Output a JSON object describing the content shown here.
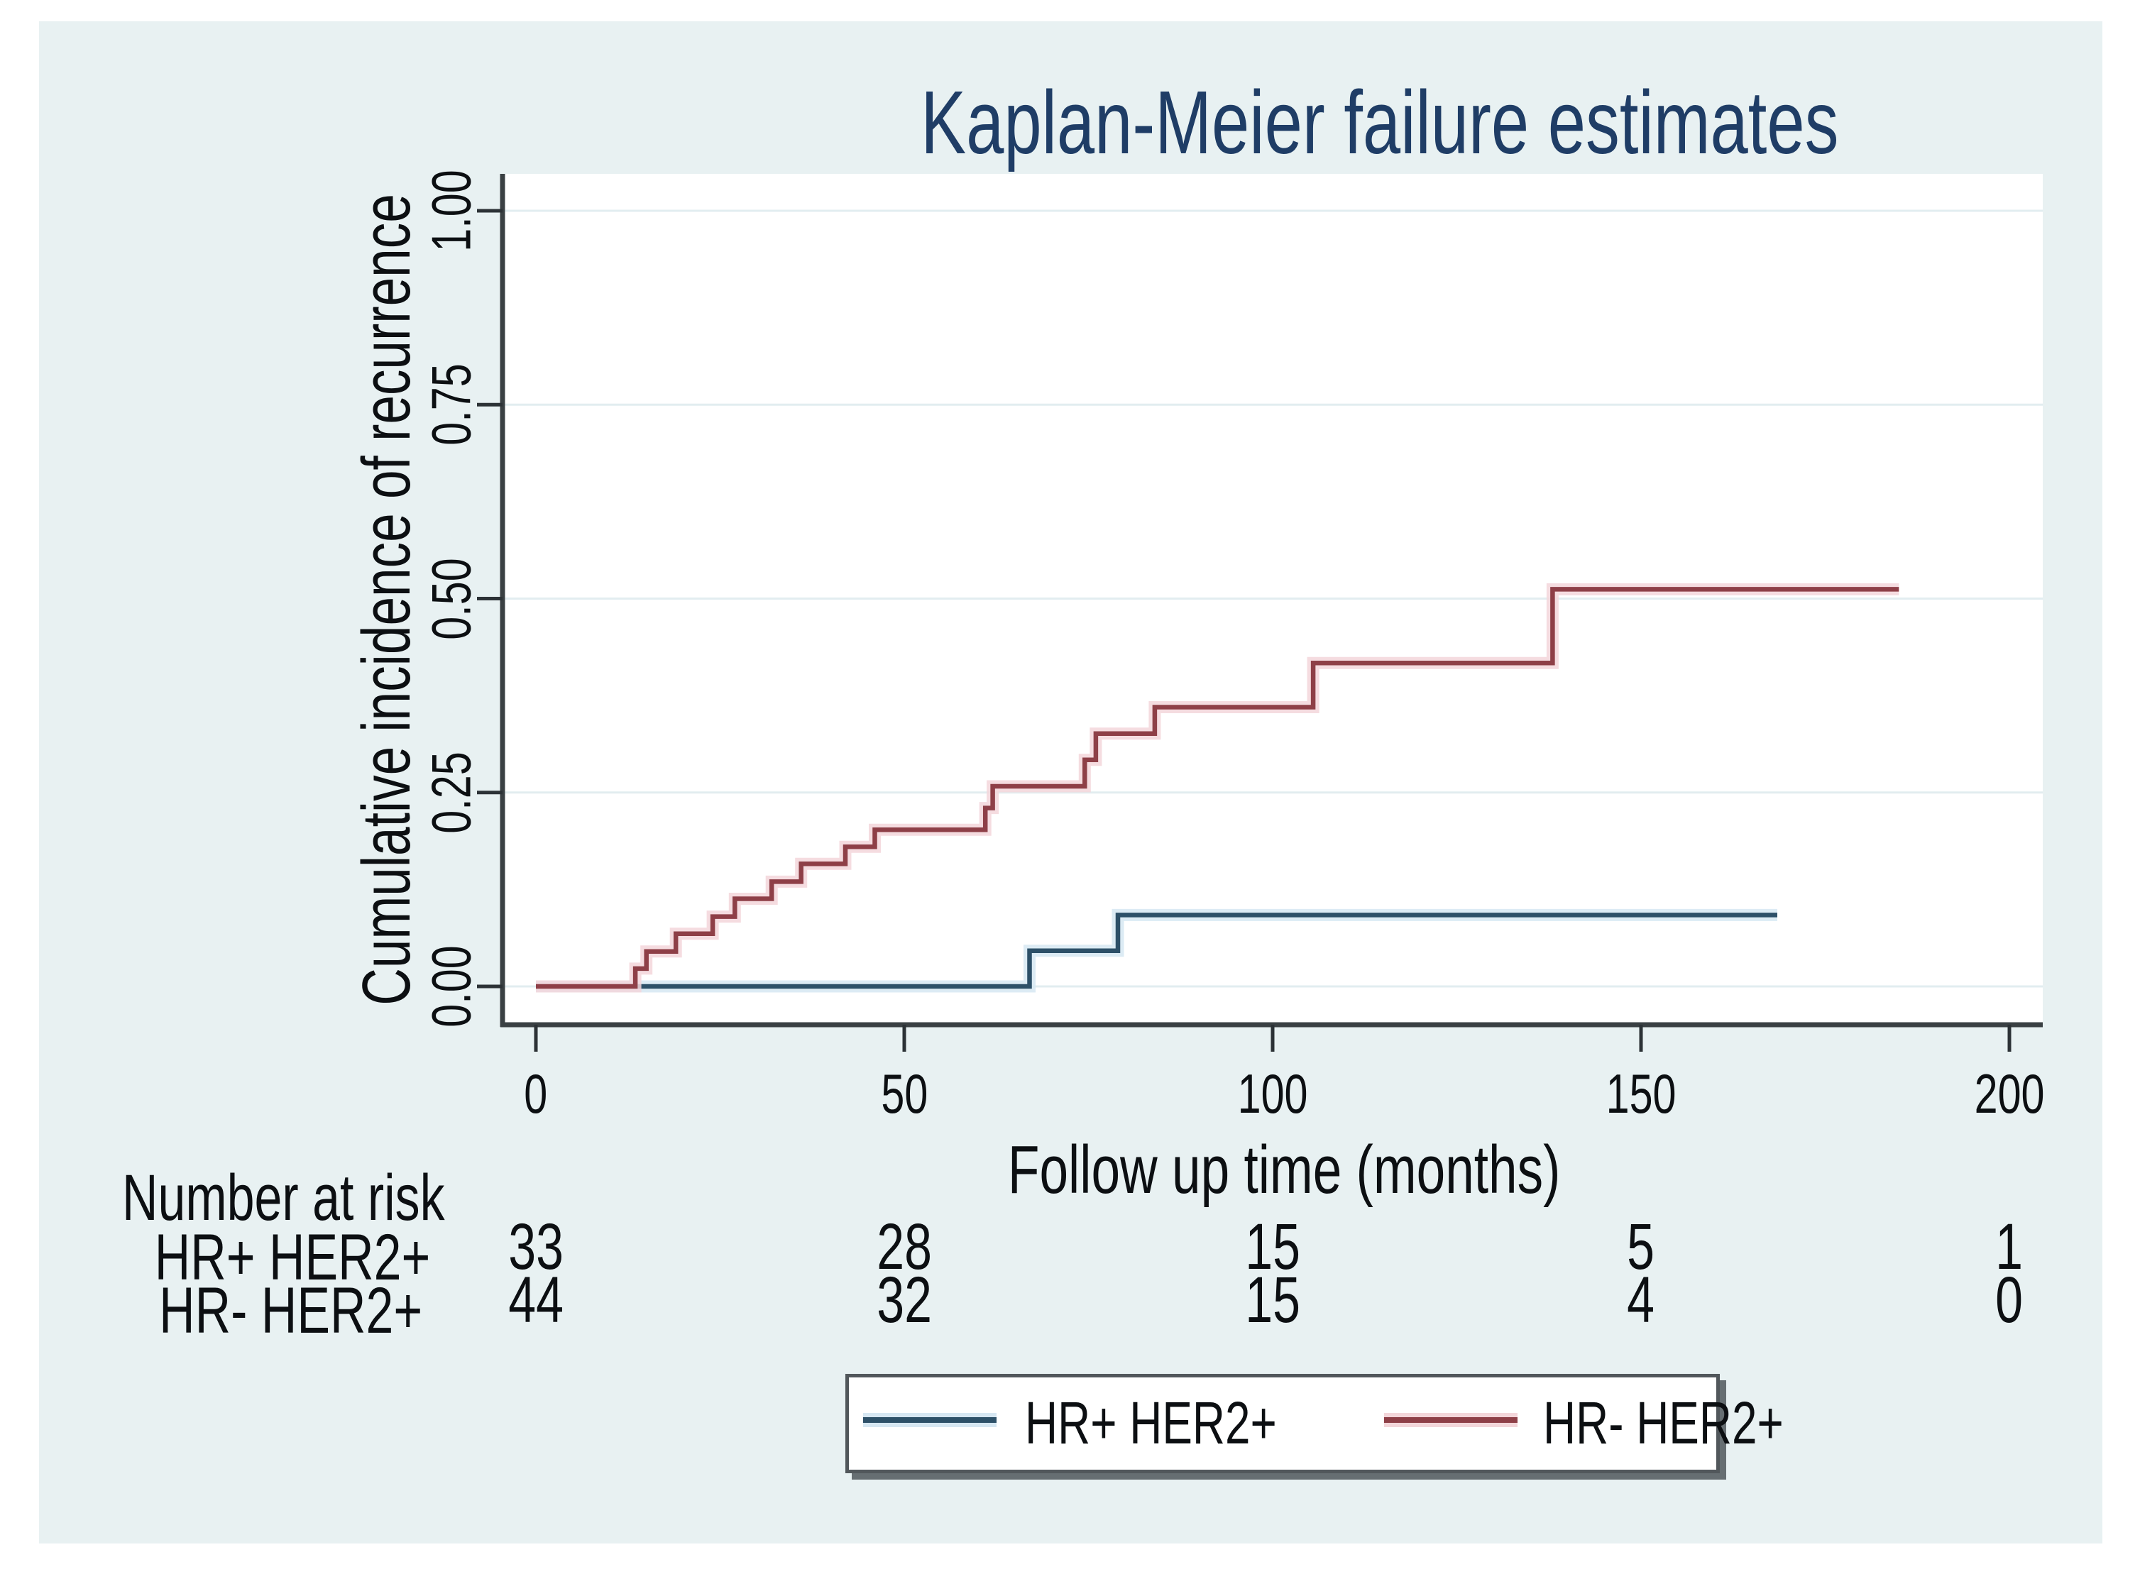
{
  "figure": {
    "title": "Kaplan-Meier failure estimates",
    "title_color": "#1f3d66",
    "background_color": "#e8f1f2",
    "plot_background": "#ffffff",
    "gridline_color": "#e2edf0",
    "axis_color": "#3a4043"
  },
  "y_axis": {
    "label": "Cumulative incidence of recurrence",
    "tick_labels": [
      "0.00",
      "0.25",
      "0.50",
      "0.75",
      "1.00"
    ]
  },
  "x_axis": {
    "label": "Follow up time (months)",
    "tick_labels": [
      "0",
      "50",
      "100",
      "150",
      "200"
    ]
  },
  "risk_table": {
    "header": "Number at risk",
    "rows": [
      {
        "label": "HR+ HER2+",
        "values": [
          "33",
          "28",
          "15",
          "5",
          "1"
        ]
      },
      {
        "label": "HR- HER2+",
        "values": [
          "44",
          "32",
          "15",
          "4",
          "0"
        ]
      }
    ]
  },
  "legend": {
    "entries": [
      {
        "label": "HR+ HER2+",
        "color": "#2d5068",
        "halo": "#d6e7f2"
      },
      {
        "label": "HR- HER2+",
        "color": "#8e3f47",
        "halo": "#f3d6da"
      }
    ]
  },
  "chart_data": {
    "type": "line",
    "subtype": "kaplan-meier-failure-step",
    "title": "Kaplan-Meier failure estimates",
    "xlabel": "Follow up time (months)",
    "ylabel": "Cumulative incidence of recurrence",
    "xlim": [
      0,
      204
    ],
    "ylim": [
      0,
      1
    ],
    "x_ticks": [
      0,
      50,
      100,
      150,
      200
    ],
    "y_ticks": [
      0,
      0.25,
      0.5,
      0.75,
      1
    ],
    "grid": "horizontal",
    "legend_position": "bottom",
    "series": [
      {
        "name": "HR+ HER2+",
        "color": "#2d5068",
        "halo": "#d6e7f2",
        "start": [
          0,
          0
        ],
        "steps": [
          [
            67,
            0.046
          ],
          [
            79,
            0.092
          ]
        ],
        "end_x": 168.5
      },
      {
        "name": "HR- HER2+",
        "color": "#8e3f47",
        "halo": "#f3d6da",
        "start": [
          0,
          0
        ],
        "steps": [
          [
            13.5,
            0.023
          ],
          [
            15,
            0.045
          ],
          [
            19,
            0.068
          ],
          [
            24,
            0.09
          ],
          [
            27,
            0.113
          ],
          [
            32,
            0.135
          ],
          [
            36,
            0.158
          ],
          [
            42,
            0.18
          ],
          [
            46,
            0.202
          ],
          [
            61,
            0.23
          ],
          [
            62,
            0.258
          ],
          [
            74.5,
            0.292
          ],
          [
            76,
            0.326
          ],
          [
            84,
            0.36
          ],
          [
            105.5,
            0.417
          ],
          [
            138,
            0.512
          ]
        ],
        "end_x": 185
      }
    ],
    "number_at_risk": {
      "times": [
        0,
        50,
        100,
        150,
        200
      ],
      "HR+ HER2+": [
        33,
        28,
        15,
        5,
        1
      ],
      "HR- HER2+": [
        44,
        32,
        15,
        4,
        0
      ]
    }
  }
}
